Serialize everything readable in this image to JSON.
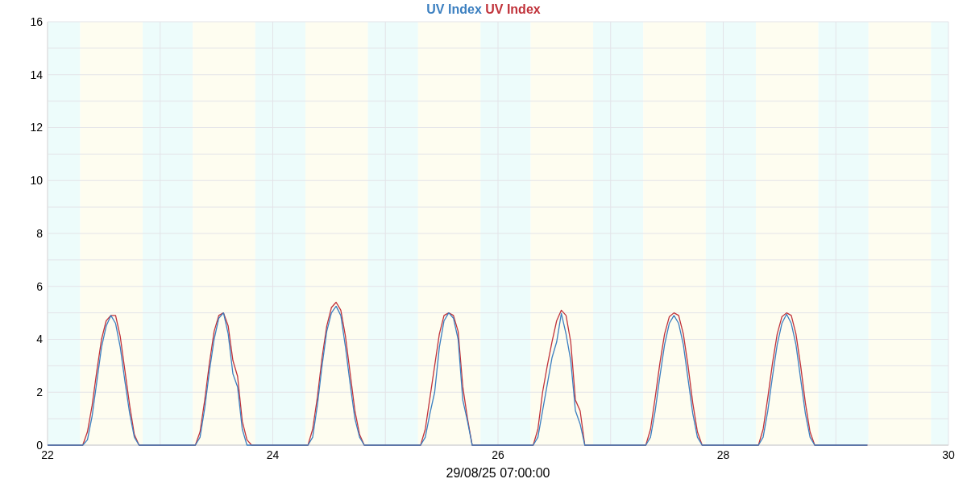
{
  "chart_data": {
    "type": "line",
    "xlabel": "29/08/25 07:00:00",
    "x": [
      22,
      22.3125,
      22.3542,
      22.3958,
      22.4375,
      22.4792,
      22.5208,
      22.5625,
      22.6042,
      22.6458,
      22.6875,
      22.7292,
      22.7708,
      22.8125,
      23.3125,
      23.3542,
      23.3958,
      23.4375,
      23.4792,
      23.5208,
      23.5625,
      23.6042,
      23.6458,
      23.6875,
      23.7292,
      23.7708,
      23.8125,
      24.3125,
      24.3542,
      24.3958,
      24.4375,
      24.4792,
      24.5208,
      24.5625,
      24.6042,
      24.6458,
      24.6875,
      24.7292,
      24.7708,
      24.8125,
      25.3125,
      25.3542,
      25.3958,
      25.4375,
      25.4792,
      25.5208,
      25.5625,
      25.6042,
      25.6458,
      25.6875,
      25.7292,
      25.7708,
      25.8125,
      26.3125,
      26.3542,
      26.3958,
      26.4375,
      26.4792,
      26.5208,
      26.5625,
      26.6042,
      26.6458,
      26.6875,
      26.7292,
      26.7708,
      26.8125,
      27.3125,
      27.3542,
      27.3958,
      27.4375,
      27.4792,
      27.5208,
      27.5625,
      27.6042,
      27.6458,
      27.6875,
      27.7292,
      27.7708,
      27.8125,
      28.3125,
      28.3542,
      28.3958,
      28.4375,
      28.4792,
      28.5208,
      28.5625,
      28.6042,
      28.6458,
      28.6875,
      28.7292,
      28.7708,
      28.8125,
      29.28
    ],
    "series": [
      {
        "name": "UV Index",
        "color": "#3b7fc0",
        "values": [
          0,
          0,
          0.2,
          1.1,
          2.4,
          3.7,
          4.5,
          4.9,
          4.6,
          3.7,
          2.4,
          1.2,
          0.3,
          0,
          0,
          0.3,
          1.4,
          2.8,
          4,
          4.8,
          5,
          4.2,
          2.7,
          2.2,
          0.6,
          0,
          0,
          0,
          0.3,
          1.5,
          3,
          4.3,
          5,
          5.25,
          4.9,
          3.7,
          2.3,
          1,
          0.3,
          0,
          0,
          0.3,
          1.2,
          2,
          3.7,
          4.7,
          5,
          4.8,
          4,
          1.7,
          0.9,
          0,
          0,
          0,
          0.3,
          1.3,
          2.3,
          3.3,
          3.9,
          4.98,
          4.2,
          3.2,
          1.3,
          0.8,
          0,
          0,
          0,
          0.3,
          1.3,
          2.6,
          3.8,
          4.6,
          4.9,
          4.6,
          3.8,
          2.5,
          1.2,
          0.3,
          0,
          0,
          0.3,
          1.3,
          2.6,
          3.8,
          4.6,
          4.95,
          4.6,
          3.8,
          2.5,
          1.2,
          0.3,
          0,
          0
        ]
      },
      {
        "name": "UV Index",
        "color": "#c0323a",
        "values": [
          0,
          0,
          0.5,
          1.5,
          2.8,
          4,
          4.7,
          4.9,
          4.9,
          4.1,
          2.8,
          1.5,
          0.4,
          0,
          0,
          0.5,
          1.7,
          3.1,
          4.3,
          4.9,
          5,
          4.5,
          3.2,
          2.6,
          0.9,
          0.2,
          0,
          0,
          0.6,
          1.8,
          3.3,
          4.5,
          5.2,
          5.4,
          5.1,
          4.1,
          2.7,
          1.3,
          0.4,
          0,
          0,
          0.6,
          1.8,
          3,
          4.2,
          4.9,
          5,
          4.9,
          4.3,
          2.2,
          1,
          0,
          0,
          0,
          0.6,
          2,
          3,
          3.9,
          4.7,
          5.1,
          4.9,
          3.9,
          1.7,
          1.3,
          0,
          0,
          0,
          0.6,
          1.8,
          3.1,
          4.2,
          4.85,
          5,
          4.9,
          4.2,
          3,
          1.6,
          0.5,
          0,
          0,
          0.6,
          1.8,
          3.1,
          4.2,
          4.85,
          5,
          4.9,
          4.2,
          3,
          1.6,
          0.5,
          0,
          0
        ]
      }
    ],
    "xlim": [
      22,
      30
    ],
    "xticks": [
      22,
      {
        "value": 23,
        "label": null
      },
      24,
      {
        "value": 25,
        "label": null
      },
      26,
      {
        "value": 27,
        "label": null
      },
      28,
      {
        "value": 29,
        "label": null
      },
      30
    ],
    "ylim": [
      0,
      16
    ],
    "yticks": [
      0,
      {
        "value": 1,
        "label": null
      },
      2,
      {
        "value": 3,
        "label": null
      },
      4,
      {
        "value": 5,
        "label": null
      },
      6,
      {
        "value": 7,
        "label": null
      },
      8,
      {
        "value": 9,
        "label": null
      },
      10,
      {
        "value": 11,
        "label": null
      },
      12,
      {
        "value": 13,
        "label": null
      },
      14,
      {
        "value": 15,
        "label": null
      },
      16
    ],
    "grid": true,
    "legend": "top",
    "marker": "none",
    "line_style": "solid",
    "bands": [
      {
        "axis": "x",
        "from": 22,
        "to": 22.29,
        "color": "#edfcfb"
      },
      {
        "axis": "x",
        "from": 22.29,
        "to": 22.845,
        "color": "#fefdf0"
      },
      {
        "axis": "x",
        "from": 22.845,
        "to": 23.29,
        "color": "#edfcfb"
      },
      {
        "axis": "x",
        "from": 23.29,
        "to": 23.845,
        "color": "#fefdf0"
      },
      {
        "axis": "x",
        "from": 23.845,
        "to": 24.29,
        "color": "#edfcfb"
      },
      {
        "axis": "x",
        "from": 24.29,
        "to": 24.845,
        "color": "#fefdf0"
      },
      {
        "axis": "x",
        "from": 24.845,
        "to": 25.29,
        "color": "#edfcfb"
      },
      {
        "axis": "x",
        "from": 25.29,
        "to": 25.845,
        "color": "#fefdf0"
      },
      {
        "axis": "x",
        "from": 25.845,
        "to": 26.29,
        "color": "#edfcfb"
      },
      {
        "axis": "x",
        "from": 26.29,
        "to": 26.845,
        "color": "#fefdf0"
      },
      {
        "axis": "x",
        "from": 26.845,
        "to": 27.29,
        "color": "#edfcfb"
      },
      {
        "axis": "x",
        "from": 27.29,
        "to": 27.845,
        "color": "#fefdf0"
      },
      {
        "axis": "x",
        "from": 27.845,
        "to": 28.29,
        "color": "#edfcfb"
      },
      {
        "axis": "x",
        "from": 28.29,
        "to": 28.845,
        "color": "#fefdf0"
      },
      {
        "axis": "x",
        "from": 28.845,
        "to": 29.29,
        "color": "#edfcfb"
      },
      {
        "axis": "x",
        "from": 29.29,
        "to": 29.845,
        "color": "#fefdf0"
      },
      {
        "axis": "x",
        "from": 29.845,
        "to": 30,
        "color": "#edfcfb"
      }
    ]
  }
}
